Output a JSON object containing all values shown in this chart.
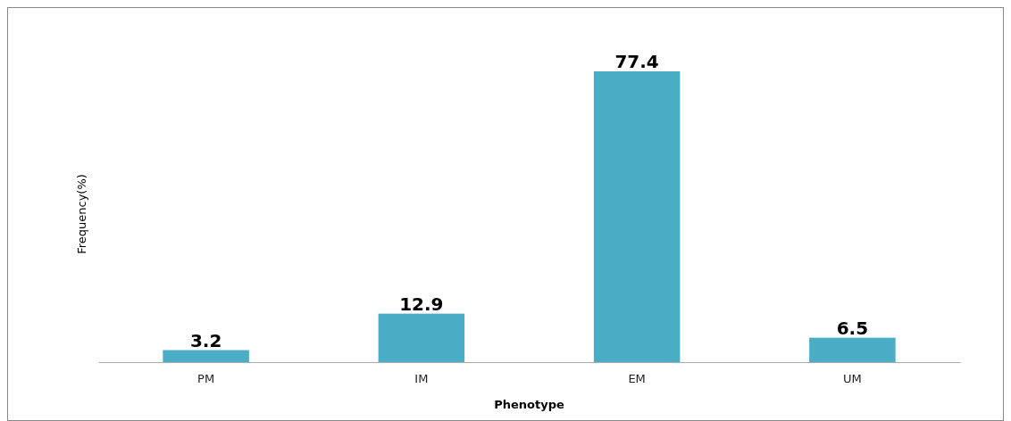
{
  "chart_data": {
    "type": "bar",
    "xlabel": "Phenotype",
    "ylabel": "Frequency(%)",
    "categories": [
      "PM",
      "IM",
      "EM",
      "UM"
    ],
    "values": [
      3.2,
      12.9,
      77.4,
      6.5
    ],
    "color": "#4bacc6",
    "data_labels": true
  }
}
